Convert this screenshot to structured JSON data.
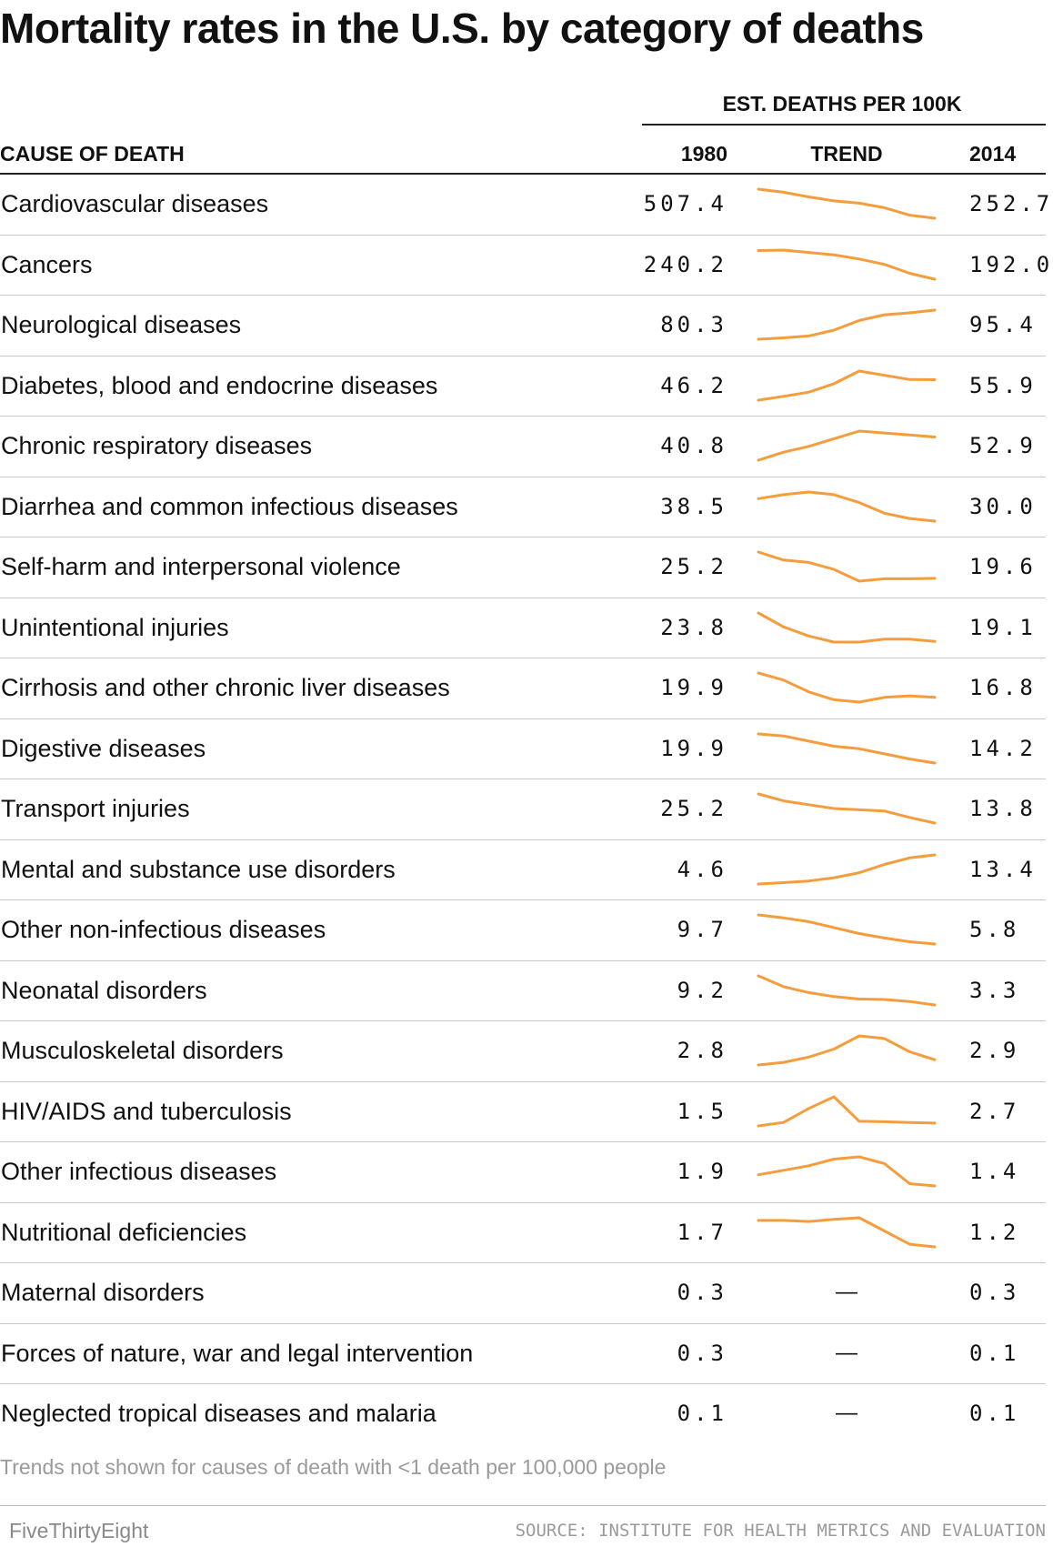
{
  "header": {
    "title": "Mortality rates in the U.S. by category of deaths",
    "group_label": "EST. DEATHS PER 100K",
    "col_cause": "CAUSE OF DEATH",
    "col_1980": "1980",
    "col_trend": "TREND",
    "col_2014": "2014"
  },
  "footer": {
    "note": "Trends not shown for causes of death with <1 death per 100,000 people",
    "brand": "FiveThirtyEight",
    "source": "SOURCE: INSTITUTE FOR HEALTH METRICS AND EVALUATION"
  },
  "colors": {
    "trend_line": "#f59d3d",
    "rule": "#222222",
    "divider": "#c8c8c8",
    "muted": "#9a9a9a"
  },
  "no_trend_symbol": "—",
  "chart_data": {
    "type": "table",
    "columns": [
      "CAUSE OF DEATH",
      "1980",
      "TREND",
      "2014"
    ],
    "trend_years": [
      1980,
      1985,
      1990,
      1995,
      2000,
      2005,
      2010,
      2014
    ],
    "rows": [
      {
        "cause": "Cardiovascular diseases",
        "v1980": "507.4",
        "v2014": "252.7",
        "trend": [
          507.4,
          480,
          440,
          405,
          385,
          345,
          280,
          252.7
        ]
      },
      {
        "cause": "Cancers",
        "v1980": "240.2",
        "v2014": "192.0",
        "trend": [
          240.2,
          241,
          237,
          233,
          226,
          217,
          202,
          192.0
        ]
      },
      {
        "cause": "Neurological diseases",
        "v1980": "80.3",
        "v2014": "95.4",
        "trend": [
          80.3,
          81,
          82,
          85,
          90,
          93,
          94,
          95.4
        ]
      },
      {
        "cause": "Diabetes, blood and endocrine diseases",
        "v1980": "46.2",
        "v2014": "55.9",
        "trend": [
          46.2,
          48,
          50,
          54,
          60,
          58,
          56,
          55.9
        ]
      },
      {
        "cause": "Chronic respiratory diseases",
        "v1980": "40.8",
        "v2014": "52.9",
        "trend": [
          40.8,
          45,
          48,
          52,
          56,
          55,
          54,
          52.9
        ]
      },
      {
        "cause": "Diarrhea and common infectious diseases",
        "v1980": "38.5",
        "v2014": "30.0",
        "trend": [
          38.5,
          40,
          41,
          40,
          37,
          33,
          31,
          30.0
        ]
      },
      {
        "cause": "Self-harm and interpersonal violence",
        "v1980": "25.2",
        "v2014": "19.6",
        "trend": [
          25.2,
          23.5,
          23,
          21.5,
          19,
          19.5,
          19.5,
          19.6
        ]
      },
      {
        "cause": "Unintentional injuries",
        "v1980": "23.8",
        "v2014": "19.1",
        "trend": [
          23.8,
          21.5,
          20,
          19,
          19,
          19.5,
          19.5,
          19.1
        ]
      },
      {
        "cause": "Cirrhosis and other chronic liver diseases",
        "v1980": "19.9",
        "v2014": "16.8",
        "trend": [
          19.9,
          19,
          17.5,
          16.5,
          16.2,
          16.8,
          17,
          16.8
        ]
      },
      {
        "cause": "Digestive diseases",
        "v1980": "19.9",
        "v2014": "14.2",
        "trend": [
          19.9,
          19.5,
          18.5,
          17.5,
          17,
          16,
          15,
          14.2
        ]
      },
      {
        "cause": "Transport injuries",
        "v1980": "25.2",
        "v2014": "13.8",
        "trend": [
          25.2,
          22.5,
          21,
          19.5,
          19,
          18.5,
          16,
          13.8
        ]
      },
      {
        "cause": "Mental and substance use disorders",
        "v1980": "4.6",
        "v2014": "13.4",
        "trend": [
          4.6,
          5,
          5.5,
          6.5,
          8,
          10.5,
          12.5,
          13.4
        ]
      },
      {
        "cause": "Other non-infectious diseases",
        "v1980": "9.7",
        "v2014": "5.8",
        "trend": [
          9.7,
          9.3,
          8.8,
          8,
          7.2,
          6.6,
          6.1,
          5.8
        ]
      },
      {
        "cause": "Neonatal disorders",
        "v1980": "9.2",
        "v2014": "3.3",
        "trend": [
          9.2,
          7,
          5.8,
          5,
          4.5,
          4.4,
          4,
          3.3
        ]
      },
      {
        "cause": "Musculoskeletal disorders",
        "v1980": "2.8",
        "v2014": "2.9",
        "trend": [
          2.8,
          2.85,
          2.95,
          3.1,
          3.35,
          3.3,
          3.05,
          2.9
        ]
      },
      {
        "cause": "HIV/AIDS and tuberculosis",
        "v1980": "1.5",
        "v2014": "2.7",
        "trend": [
          1.5,
          3,
          9,
          14,
          3.5,
          3.3,
          3,
          2.7
        ]
      },
      {
        "cause": "Other infectious diseases",
        "v1980": "1.9",
        "v2014": "1.4",
        "trend": [
          1.9,
          2.1,
          2.3,
          2.6,
          2.7,
          2.4,
          1.5,
          1.4
        ]
      },
      {
        "cause": "Nutritional deficiencies",
        "v1980": "1.7",
        "v2014": "1.2",
        "trend": [
          1.7,
          1.7,
          1.68,
          1.72,
          1.75,
          1.5,
          1.25,
          1.2
        ]
      },
      {
        "cause": "Maternal disorders",
        "v1980": "0.3",
        "v2014": "0.3",
        "trend": null
      },
      {
        "cause": "Forces of nature, war and legal intervention",
        "v1980": "0.3",
        "v2014": "0.1",
        "trend": null
      },
      {
        "cause": "Neglected tropical diseases and malaria",
        "v1980": "0.1",
        "v2014": "0.1",
        "trend": null
      }
    ]
  }
}
